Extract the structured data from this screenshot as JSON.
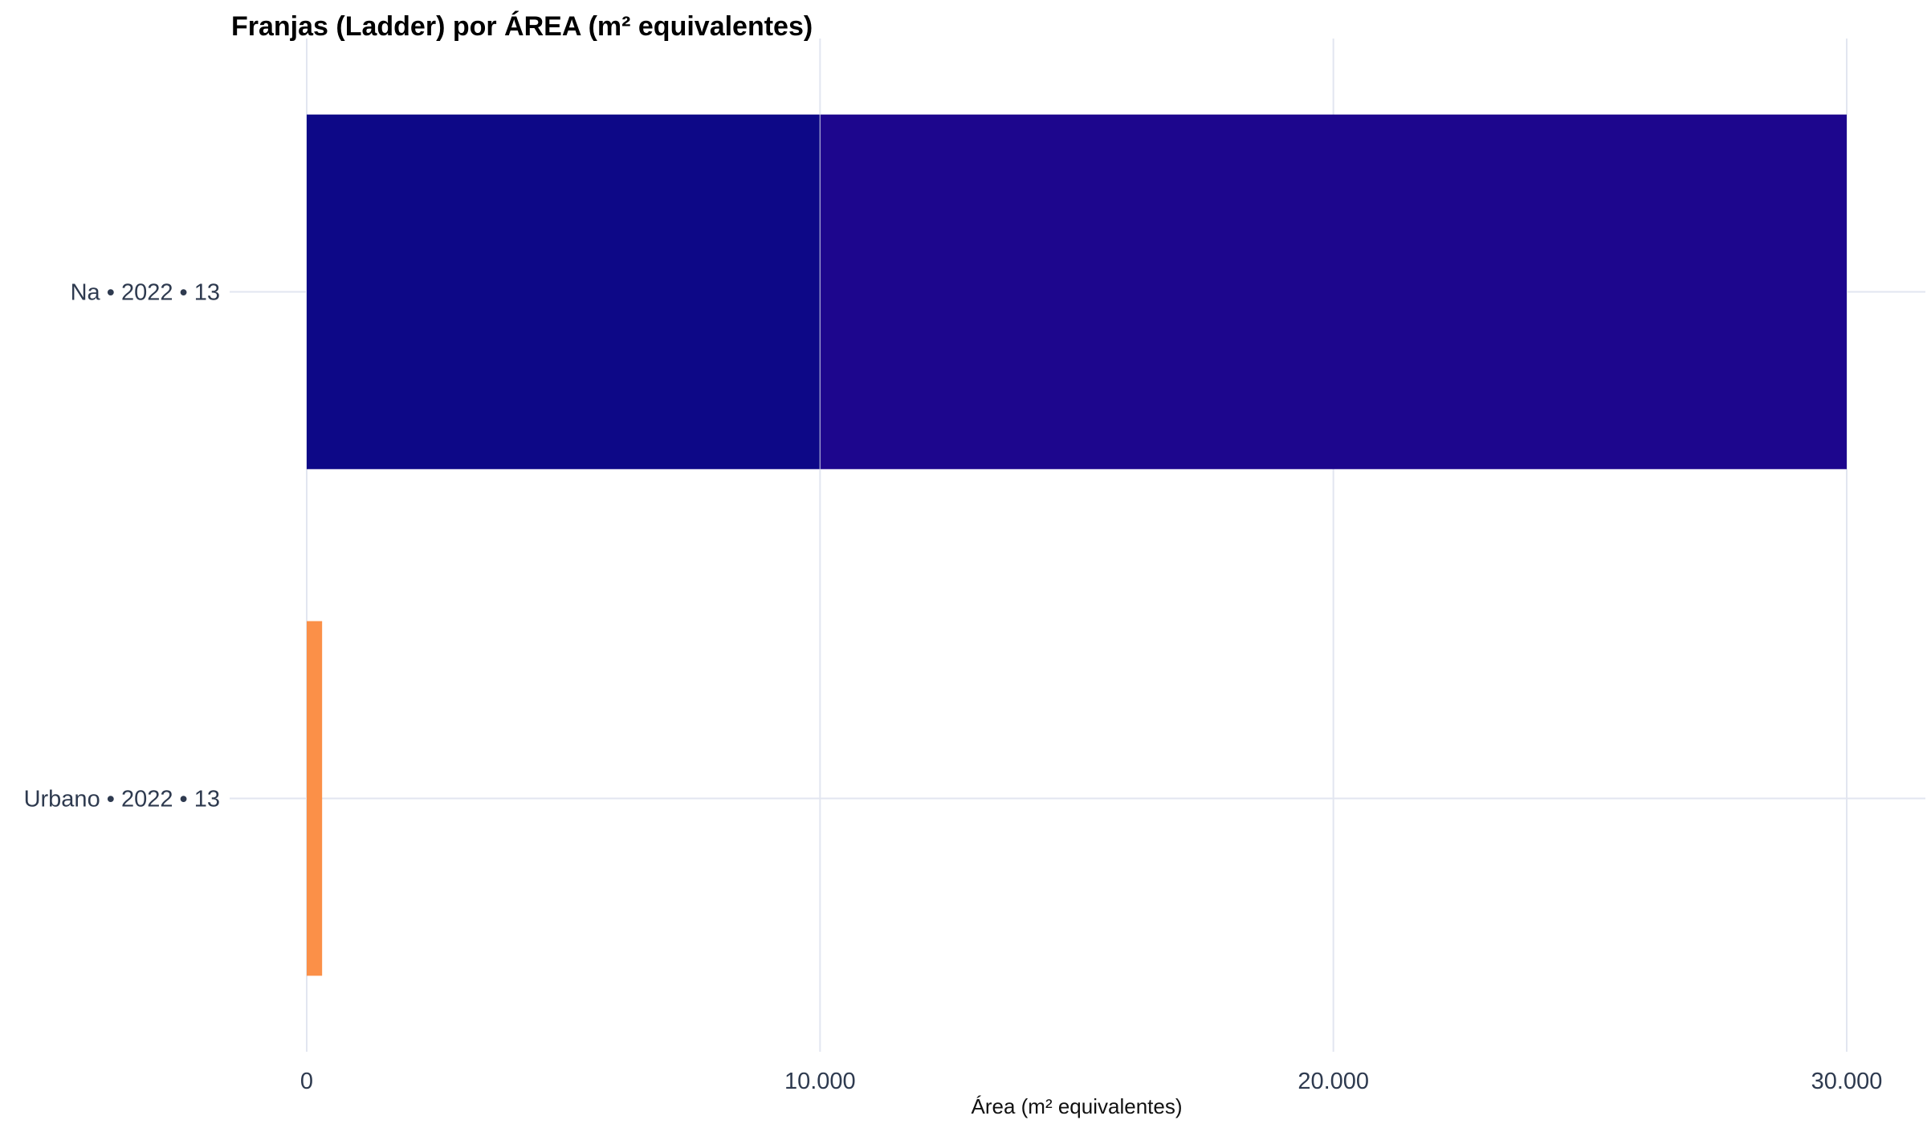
{
  "chart_data": {
    "type": "bar",
    "orientation": "horizontal",
    "stacked": true,
    "title": "Franjas (Ladder) por ÁREA (m² equivalentes)",
    "xlabel": "Área (m² equivalentes)",
    "ylabel": "",
    "xlim": [
      0,
      31500
    ],
    "x_ticks": [
      0,
      10000,
      20000,
      30000
    ],
    "x_tick_labels": [
      "0",
      "10.000",
      "20.000",
      "30.000"
    ],
    "categories": [
      "Na • 2022 • 13",
      "Urbano • 2022 • 13"
    ],
    "bars": [
      {
        "category": "Na • 2022 • 13",
        "segments": [
          {
            "start": 0,
            "end": 10000,
            "color": "#0d0887"
          },
          {
            "start": 10000,
            "end": 30000,
            "color": "#1d068d"
          }
        ]
      },
      {
        "category": "Urbano • 2022 • 13",
        "segments": [
          {
            "start": 0,
            "end": 300,
            "color": "#fb9048"
          }
        ]
      }
    ],
    "grid": true,
    "legend": "none"
  }
}
